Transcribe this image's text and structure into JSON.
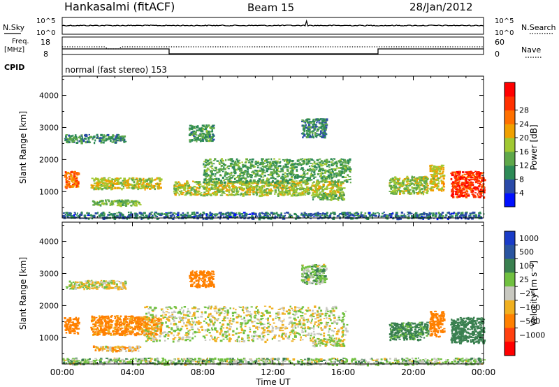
{
  "header": {
    "station": "Hankasalmi (fitACF)",
    "beam": "Beam 15",
    "date": "28/Jan/2012"
  },
  "noise_panel": {
    "left_label": "N.Sky",
    "right_label": "N.Search",
    "tick_top": "10^5",
    "tick_bottom": "10^0"
  },
  "freq_panel": {
    "label_top": "Freq.",
    "label_unit": "[MHz]",
    "left_top": "18",
    "left_bottom": "8",
    "right_top": "60",
    "right_bottom": "0",
    "right_label": "Nave"
  },
  "cpid_panel": {
    "label": "CPID",
    "program": "normal (fast stereo) 153"
  },
  "colors": {
    "power_scale": [
      "#0010ff",
      "#2a4aa8",
      "#2e8b57",
      "#5fa84a",
      "#a0c832",
      "#f0a000",
      "#ff7000",
      "#ff3000",
      "#ff0000"
    ],
    "velocity_scale": [
      "#1a3cc8",
      "#2a55a0",
      "#3a8050",
      "#70c040",
      "#c8c8c0",
      "#f0b020",
      "#ff8000",
      "#ff4010",
      "#ff0000"
    ]
  },
  "chart_data": [
    {
      "type": "heatmap",
      "title": "Power",
      "xlabel": "Time UT",
      "ylabel": "Slant Range [km]",
      "x_ticks": [
        "00:00",
        "04:00",
        "08:00",
        "12:00",
        "16:00",
        "20:00",
        "00:00"
      ],
      "xlim_hours": [
        0,
        24
      ],
      "ylim": [
        180,
        4600
      ],
      "y_ticks": [
        1000,
        2000,
        3000,
        4000
      ],
      "colorbar": {
        "label": "Power [dB]",
        "ticks": [
          4,
          8,
          12,
          16,
          20,
          24,
          28
        ]
      },
      "regions": [
        {
          "t0": 0.1,
          "t1": 0.9,
          "r0": 1150,
          "r1": 1650,
          "value": 24
        },
        {
          "t0": 0.1,
          "t1": 3.6,
          "r0": 2550,
          "r1": 2800,
          "value": 9
        },
        {
          "t0": 1.6,
          "t1": 5.6,
          "r0": 1100,
          "r1": 1450,
          "value": 17
        },
        {
          "t0": 1.7,
          "t1": 4.4,
          "r0": 590,
          "r1": 760,
          "value": 13
        },
        {
          "t0": 6.3,
          "t1": 16.0,
          "r0": 900,
          "r1": 1350,
          "value": 16
        },
        {
          "t0": 8.0,
          "t1": 16.4,
          "r0": 1300,
          "r1": 2050,
          "value": 11
        },
        {
          "t0": 7.2,
          "t1": 8.6,
          "r0": 2600,
          "r1": 3100,
          "value": 10
        },
        {
          "t0": 13.6,
          "t1": 15.0,
          "r0": 2700,
          "r1": 3300,
          "value": 8
        },
        {
          "t0": 14.2,
          "t1": 16.0,
          "r0": 760,
          "r1": 980,
          "value": 13
        },
        {
          "t0": 18.6,
          "t1": 20.8,
          "r0": 950,
          "r1": 1500,
          "value": 15
        },
        {
          "t0": 20.9,
          "t1": 21.7,
          "r0": 1050,
          "r1": 1850,
          "value": 18
        },
        {
          "t0": 22.1,
          "t1": 24.0,
          "r0": 850,
          "r1": 1650,
          "value": 28
        },
        {
          "t0": 0.0,
          "t1": 24.0,
          "r0": 180,
          "r1": 380,
          "value": 6
        }
      ]
    },
    {
      "type": "heatmap",
      "title": "Velocity",
      "xlabel": "Time UT",
      "ylabel": "Slant Range [km]",
      "x_ticks": [
        "00:00",
        "04:00",
        "08:00",
        "12:00",
        "16:00",
        "20:00",
        "00:00"
      ],
      "xlim_hours": [
        0,
        24
      ],
      "ylim": [
        180,
        4600
      ],
      "y_ticks": [
        1000,
        2000,
        3000,
        4000
      ],
      "colorbar": {
        "label": "Velocity [m s^-1]",
        "ticks": [
          "1000",
          "500",
          "100",
          "25",
          "−25",
          "−100",
          "−500",
          "−1000"
        ]
      },
      "regions": [
        {
          "t0": 0.1,
          "t1": 0.9,
          "r0": 1150,
          "r1": 1650,
          "value": -200
        },
        {
          "t0": 0.1,
          "t1": 3.6,
          "r0": 2550,
          "r1": 2800,
          "value": 0
        },
        {
          "t0": 1.6,
          "t1": 5.6,
          "r0": 1100,
          "r1": 1700,
          "value": -150
        },
        {
          "t0": 1.7,
          "t1": 4.4,
          "r0": 590,
          "r1": 760,
          "value": -60
        },
        {
          "t0": 4.6,
          "t1": 16.2,
          "r0": 900,
          "r1": 2000,
          "value": 0
        },
        {
          "t0": 7.2,
          "t1": 8.6,
          "r0": 2600,
          "r1": 3100,
          "value": -200
        },
        {
          "t0": 13.6,
          "t1": 15.0,
          "r0": 2700,
          "r1": 3300,
          "value": 60
        },
        {
          "t0": 14.2,
          "t1": 16.0,
          "r0": 760,
          "r1": 980,
          "value": 0
        },
        {
          "t0": 18.6,
          "t1": 20.8,
          "r0": 950,
          "r1": 1500,
          "value": 150
        },
        {
          "t0": 20.9,
          "t1": 21.7,
          "r0": 1050,
          "r1": 1850,
          "value": -200
        },
        {
          "t0": 22.1,
          "t1": 24.0,
          "r0": 850,
          "r1": 1650,
          "value": 200
        },
        {
          "t0": 0.0,
          "t1": 24.0,
          "r0": 180,
          "r1": 380,
          "value": 50
        }
      ]
    }
  ]
}
